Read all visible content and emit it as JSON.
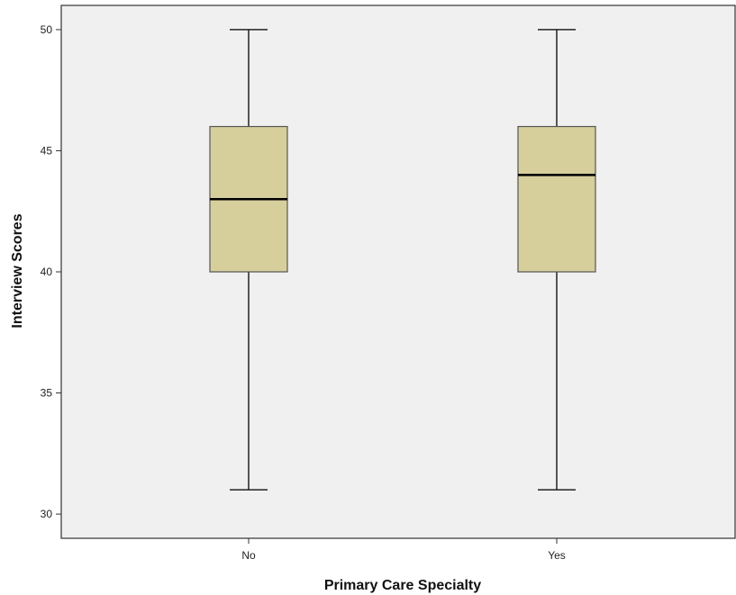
{
  "chart_data": {
    "type": "boxplot",
    "xlabel": "Primary Care Specialty",
    "ylabel": "Interview Scores",
    "ylim": [
      29,
      51
    ],
    "yticks": [
      30,
      35,
      40,
      45,
      50
    ],
    "categories": [
      "No",
      "Yes"
    ],
    "boxes": [
      {
        "category": "No",
        "min": 31,
        "q1": 40,
        "median": 43,
        "q3": 46,
        "max": 50
      },
      {
        "category": "Yes",
        "min": 31,
        "q1": 40,
        "median": 44,
        "q3": 46,
        "max": 50
      }
    ],
    "grid": false,
    "colors": {
      "plot_background": "#f0f0f0",
      "box_fill": "#d6cf9c",
      "box_stroke": "#555555",
      "median": "#000000",
      "whisker": "#222222",
      "axis": "#333333"
    }
  }
}
